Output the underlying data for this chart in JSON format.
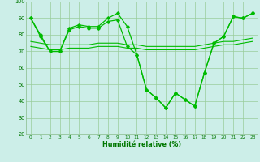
{
  "xlabel": "Humidité relative (%)",
  "bg_color": "#cceee8",
  "line_color": "#00bb00",
  "grid_color": "#99cc99",
  "ylim": [
    20,
    100
  ],
  "xlim": [
    -0.5,
    23.5
  ],
  "yticks": [
    20,
    30,
    40,
    50,
    60,
    70,
    80,
    90,
    100
  ],
  "xticks": [
    0,
    1,
    2,
    3,
    4,
    5,
    6,
    7,
    8,
    9,
    10,
    11,
    12,
    13,
    14,
    15,
    16,
    17,
    18,
    19,
    20,
    21,
    22,
    23
  ],
  "series_spiky": [
    90,
    80,
    70,
    70,
    84,
    86,
    85,
    85,
    90,
    93,
    85,
    68,
    47,
    42,
    36,
    45,
    41,
    37,
    57,
    75,
    79,
    91,
    90,
    93
  ],
  "series_smooth": [
    90,
    79,
    70,
    70,
    83,
    85,
    84,
    84,
    88,
    89,
    73,
    68,
    47,
    42,
    36,
    45,
    41,
    37,
    57,
    75,
    79,
    91,
    90,
    93
  ],
  "series_flat1": [
    73,
    72,
    71,
    71,
    72,
    72,
    72,
    73,
    73,
    73,
    72,
    72,
    71,
    71,
    71,
    71,
    71,
    71,
    72,
    73,
    74,
    74,
    75,
    76
  ],
  "series_flat2": [
    76,
    75,
    74,
    74,
    74,
    74,
    74,
    75,
    75,
    75,
    74,
    74,
    73,
    73,
    73,
    73,
    73,
    73,
    74,
    75,
    76,
    76,
    77,
    78
  ]
}
